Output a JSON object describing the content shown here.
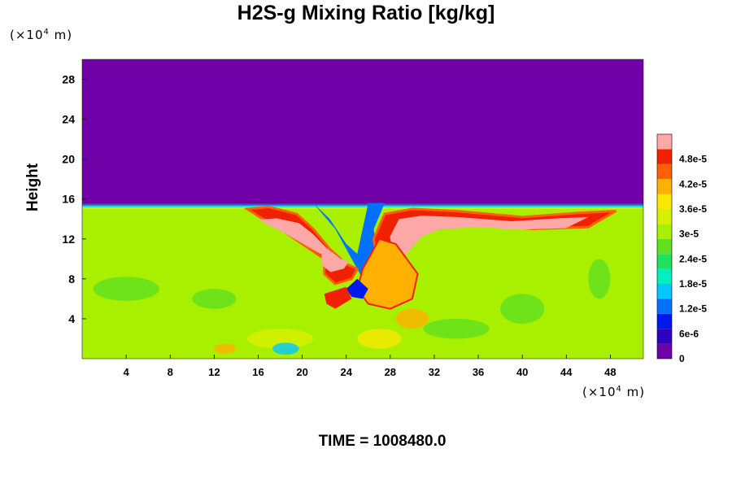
{
  "chart_data": {
    "type": "heatmap",
    "title": "H2S-g Mixing Ratio [kg/kg]",
    "ylabel": "Height",
    "x_unit_label": {
      "prefix": "(×10",
      "exp": "4",
      "suffix": " m)"
    },
    "y_unit_label": {
      "prefix": "(×10",
      "exp": "4",
      "suffix": " m)"
    },
    "x_ticks": [
      "4",
      "8",
      "12",
      "16",
      "20",
      "24",
      "28",
      "32",
      "36",
      "40",
      "44",
      "48"
    ],
    "y_ticks": [
      "4",
      "8",
      "12",
      "16",
      "20",
      "24",
      "28"
    ],
    "xlim": [
      0,
      51
    ],
    "ylim": [
      0,
      30
    ],
    "colorbar": {
      "range": [
        0,
        5.4e-05
      ],
      "tick_labels": [
        "0",
        "6e-6",
        "1.2e-5",
        "1.8e-5",
        "2.4e-5",
        "3e-5",
        "3.6e-5",
        "4.2e-5",
        "4.8e-5"
      ],
      "tick_values": [
        0,
        6e-06,
        1.2e-05,
        1.8e-05,
        2.4e-05,
        3e-05,
        3.6e-05,
        4.2e-05,
        4.8e-05
      ],
      "colors": [
        "#7000a8",
        "#3000c0",
        "#0018f0",
        "#0070ff",
        "#00c8ff",
        "#00f0c0",
        "#20e060",
        "#60e020",
        "#a8f000",
        "#d8f000",
        "#f8e800",
        "#ffb000",
        "#ff6000",
        "#f02000",
        "#ffa8a8"
      ]
    },
    "regions": {
      "upper_layer_value": 0,
      "lower_layer_value": 3e-05,
      "interface_height": 15.5,
      "plume_peak_value": 5.4e-05
    }
  },
  "footer": {
    "time_label": "TIME = 1008480.0"
  },
  "colors": {
    "background": "#7000a8",
    "lower": "#a8f000",
    "peak": "#ffa8a8"
  }
}
